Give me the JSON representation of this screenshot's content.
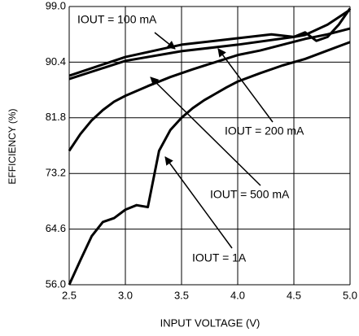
{
  "chart_data": {
    "type": "line",
    "xlabel": "INPUT VOLTAGE (V)",
    "ylabel": "EFFICIENCY (%)",
    "xlim": [
      2.5,
      5.0
    ],
    "xticks": [
      {
        "value": 2.5,
        "label": "2.5"
      },
      {
        "value": 3,
        "label": "3.0"
      },
      {
        "value": 3.5,
        "label": "3.5"
      },
      {
        "value": 4,
        "label": "4.0"
      },
      {
        "value": 4.5,
        "label": "4.5"
      },
      {
        "value": 5,
        "label": "5.0"
      }
    ],
    "ylim": [
      56.0,
      99.0
    ],
    "yticks": [
      {
        "value": 56,
        "label": "56.0"
      },
      64.6,
      73.2,
      81.8,
      90.4,
      {
        "value": 99,
        "label": "99.0"
      }
    ],
    "grid": true,
    "series": [
      {
        "name": "IOUT = 100 mA",
        "color": "#000000",
        "x": [
          2.5,
          3.0,
          3.5,
          4.0,
          4.3,
          4.5,
          4.6,
          4.8,
          5.0
        ],
        "values": [
          88.3,
          91.2,
          93.1,
          94.1,
          94.7,
          94.3,
          94.6,
          96.2,
          98.5
        ]
      },
      {
        "name": "IOUT = 200 mA",
        "color": "#000000",
        "x": [
          2.5,
          3.0,
          3.5,
          4.0,
          4.5,
          4.6,
          4.7,
          4.8,
          4.9,
          5.0
        ],
        "values": [
          87.8,
          90.6,
          92.1,
          93.1,
          94.3,
          95.0,
          93.7,
          94.3,
          96.2,
          98.7
        ]
      },
      {
        "name": "IOUT = 500 mA",
        "color": "#000000",
        "x": [
          2.5,
          2.6,
          2.7,
          2.8,
          2.9,
          3.0,
          3.2,
          3.4,
          3.6,
          3.8,
          4.0,
          4.2,
          4.4,
          4.6,
          4.8,
          5.0
        ],
        "values": [
          76.7,
          79.3,
          81.4,
          83.0,
          84.3,
          85.2,
          86.7,
          88.1,
          89.3,
          90.4,
          91.5,
          92.2,
          93.1,
          94.0,
          94.7,
          95.6
        ]
      },
      {
        "name": "IOUT = 1A",
        "color": "#000000",
        "x": [
          2.5,
          2.6,
          2.7,
          2.8,
          2.9,
          3.0,
          3.1,
          3.2,
          3.3,
          3.4,
          3.5,
          3.6,
          3.7,
          3.8,
          3.9,
          4.0,
          4.2,
          4.4,
          4.6,
          4.8,
          5.0
        ],
        "values": [
          56.0,
          59.8,
          63.5,
          65.7,
          66.3,
          67.6,
          68.3,
          68.0,
          76.7,
          79.9,
          81.8,
          83.3,
          84.5,
          85.5,
          86.5,
          87.4,
          88.7,
          89.9,
          90.9,
          92.2,
          93.5
        ]
      }
    ]
  }
}
